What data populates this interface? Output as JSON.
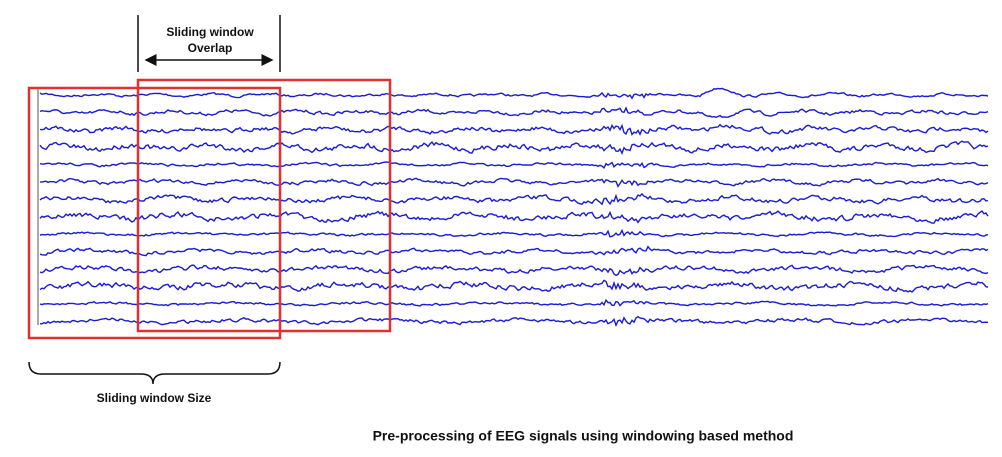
{
  "overlap_label": {
    "line1": "Sliding window",
    "line2": "Overlap"
  },
  "size_label": "Sliding window Size",
  "caption": "Pre-processing of EEG signals using windowing based method"
}
